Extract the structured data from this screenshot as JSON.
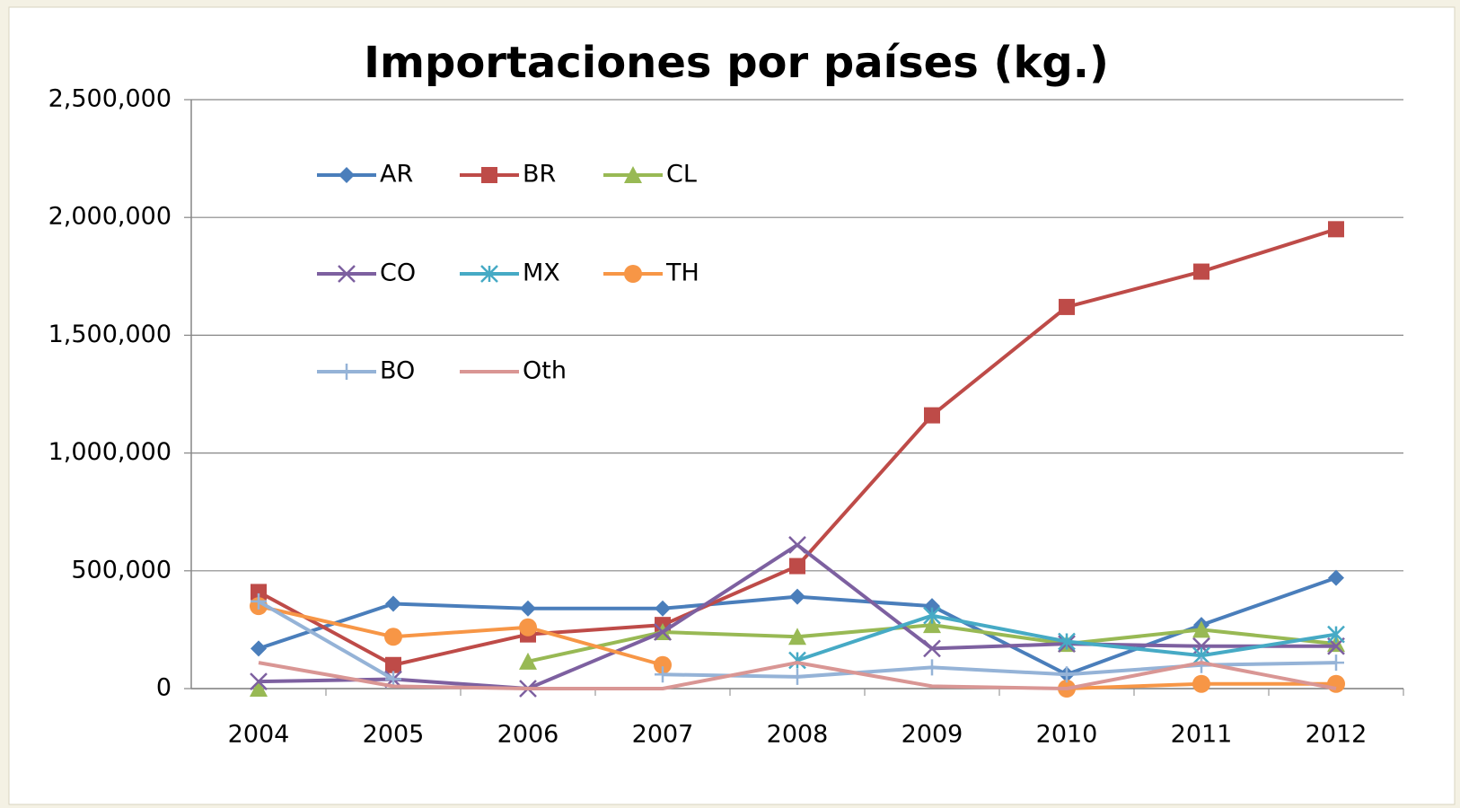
{
  "chart_data": {
    "type": "line",
    "title": "Importaciones por países (kg.)",
    "categories": [
      "2004",
      "2005",
      "2006",
      "2007",
      "2008",
      "2009",
      "2010",
      "2011",
      "2012"
    ],
    "ylim": [
      0,
      2500000
    ],
    "yticks": [
      {
        "value": 0,
        "label": "0"
      },
      {
        "value": 500000,
        "label": "500,000"
      },
      {
        "value": 1000000,
        "label": "1,000,000"
      },
      {
        "value": 1500000,
        "label": "1,500,000"
      },
      {
        "value": 2000000,
        "label": "2,000,000"
      },
      {
        "value": 2500000,
        "label": "2,500,000"
      }
    ],
    "grid": true,
    "series": [
      {
        "name": "AR",
        "color": "#4a7ebb",
        "marker": "diamond",
        "values": [
          170000,
          360000,
          340000,
          340000,
          390000,
          350000,
          60000,
          270000,
          470000
        ]
      },
      {
        "name": "BR",
        "color": "#be4b48",
        "marker": "square",
        "values": [
          410000,
          100000,
          230000,
          270000,
          520000,
          1160000,
          1620000,
          1770000,
          1950000
        ]
      },
      {
        "name": "CL",
        "color": "#98b954",
        "marker": "triangle",
        "values": [
          0,
          null,
          115000,
          240000,
          220000,
          270000,
          190000,
          250000,
          190000
        ]
      },
      {
        "name": "CO",
        "color": "#7d60a0",
        "marker": "x",
        "values": [
          30000,
          40000,
          0,
          240000,
          610000,
          170000,
          190000,
          180000,
          180000
        ]
      },
      {
        "name": "MX",
        "color": "#46aac5",
        "marker": "asterisk",
        "values": [
          null,
          null,
          null,
          null,
          120000,
          310000,
          200000,
          140000,
          230000
        ]
      },
      {
        "name": "TH",
        "color": "#f79646",
        "marker": "circle",
        "values": [
          350000,
          220000,
          260000,
          100000,
          null,
          null,
          0,
          20000,
          20000
        ]
      },
      {
        "name": "BO",
        "color": "#95b3d7",
        "marker": "plus",
        "values": [
          370000,
          40000,
          null,
          60000,
          50000,
          90000,
          60000,
          100000,
          110000
        ]
      },
      {
        "name": "Oth",
        "color": "#d99694",
        "marker": "none",
        "values": [
          110000,
          10000,
          0,
          0,
          110000,
          10000,
          0,
          110000,
          0
        ]
      }
    ]
  }
}
